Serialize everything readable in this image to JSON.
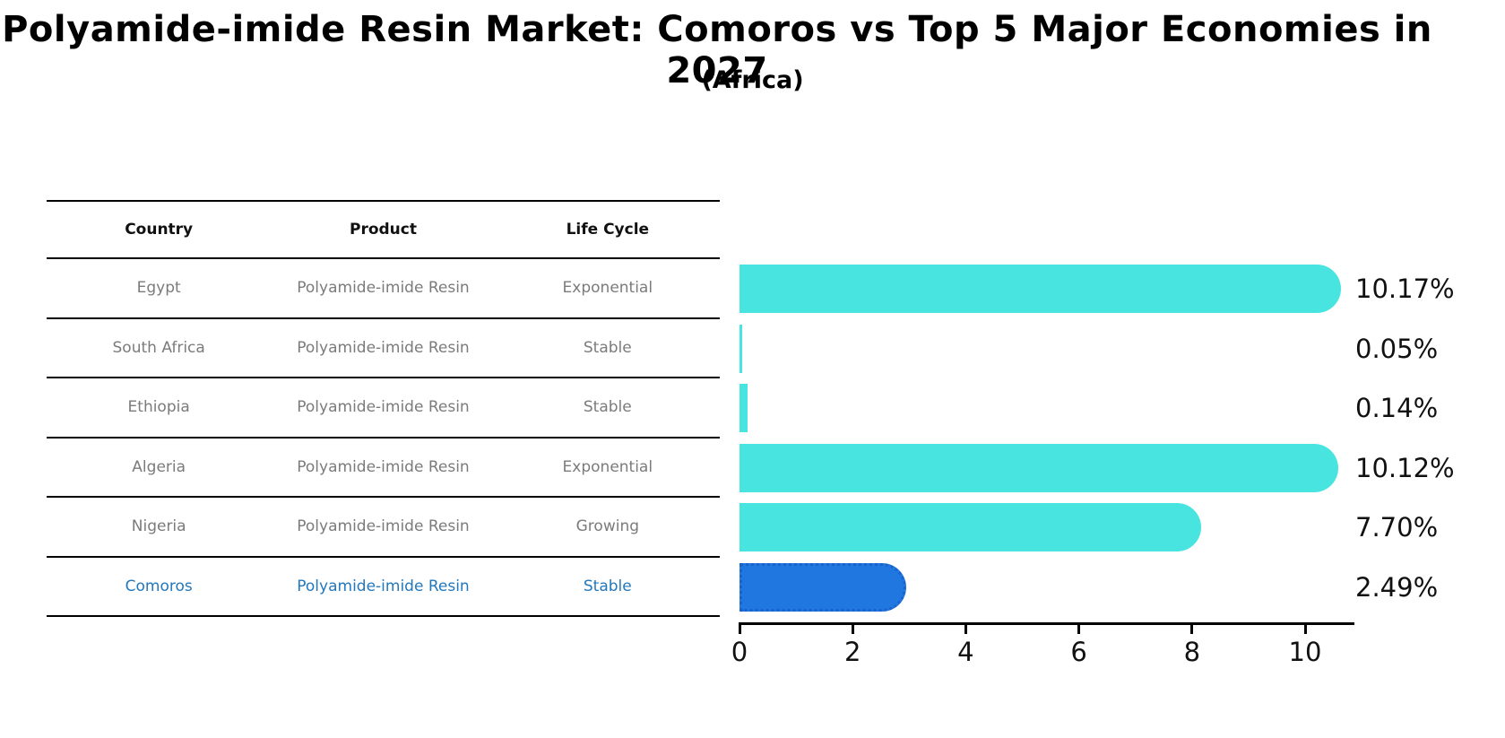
{
  "page": {
    "title": "Polyamide-imide Resin Market: Comoros vs Top 5 Major Economies in 2027",
    "subtitle": "(Africa)"
  },
  "table": {
    "headers": [
      "Country",
      "Product",
      "Life Cycle"
    ],
    "rows": [
      {
        "country": "Egypt",
        "product": "Polyamide-imide Resin",
        "life_cycle": "Exponential",
        "highlight": false
      },
      {
        "country": "South Africa",
        "product": "Polyamide-imide Resin",
        "life_cycle": "Stable",
        "highlight": false
      },
      {
        "country": "Ethiopia",
        "product": "Polyamide-imide Resin",
        "life_cycle": "Stable",
        "highlight": false
      },
      {
        "country": "Algeria",
        "product": "Polyamide-imide Resin",
        "life_cycle": "Exponential",
        "highlight": false
      },
      {
        "country": "Nigeria",
        "product": "Polyamide-imide Resin",
        "life_cycle": "Growing",
        "highlight": false
      },
      {
        "country": "Comoros",
        "product": "Polyamide-imide Resin",
        "life_cycle": "Stable",
        "highlight": true
      }
    ]
  },
  "chart_data": {
    "type": "bar",
    "orientation": "horizontal",
    "title": "Polyamide-imide Resin Market: Comoros vs Top 5 Major Economies in 2027",
    "subtitle": "(Africa)",
    "categories": [
      "Egypt",
      "South Africa",
      "Ethiopia",
      "Algeria",
      "Nigeria",
      "Comoros"
    ],
    "values": [
      10.17,
      0.05,
      0.14,
      10.12,
      7.7,
      2.49
    ],
    "value_labels": [
      "10.17%",
      "0.05%",
      "0.14%",
      "10.12%",
      "7.70%",
      "2.49%"
    ],
    "xlabel": "",
    "ylabel": "",
    "xticks": [
      0,
      2,
      4,
      6,
      8,
      10
    ],
    "xlim": [
      0,
      10.87
    ],
    "grid": false,
    "legend": false,
    "bar_color": "#48e4e0",
    "highlight_index": 5,
    "highlight_color": "#2077e0",
    "highlight_border_color": "#1b63cc"
  },
  "colors": {
    "text": "#111111",
    "muted_text": "#7b7b7b",
    "highlight_text": "#2278bd",
    "axis": "#000000"
  }
}
